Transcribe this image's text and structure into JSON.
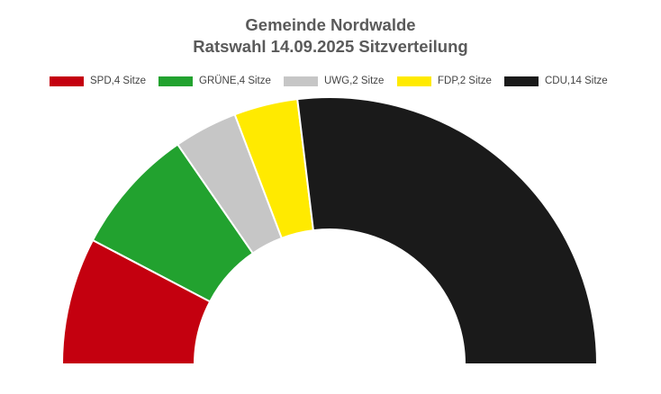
{
  "chart_data": {
    "type": "pie",
    "variant": "semicircle-parliament",
    "title": "Gemeinde Nordwalde",
    "subtitle": "Ratswahl 14.09.2025 Sitzverteilung",
    "legend_position": "top",
    "series": [
      {
        "name": "SPD,4 Sitze",
        "party": "SPD",
        "value": 4,
        "color": "#c4000f"
      },
      {
        "name": "GRÜNE,4 Sitze",
        "party": "GRÜNE",
        "value": 4,
        "color": "#22a22f"
      },
      {
        "name": "UWG,2 Sitze",
        "party": "UWG",
        "value": 2,
        "color": "#c6c6c6"
      },
      {
        "name": "FDP,2 Sitze",
        "party": "FDP",
        "value": 2,
        "color": "#ffea00"
      },
      {
        "name": "CDU,14 Sitze",
        "party": "CDU",
        "value": 14,
        "color": "#1a1a1a"
      }
    ]
  }
}
